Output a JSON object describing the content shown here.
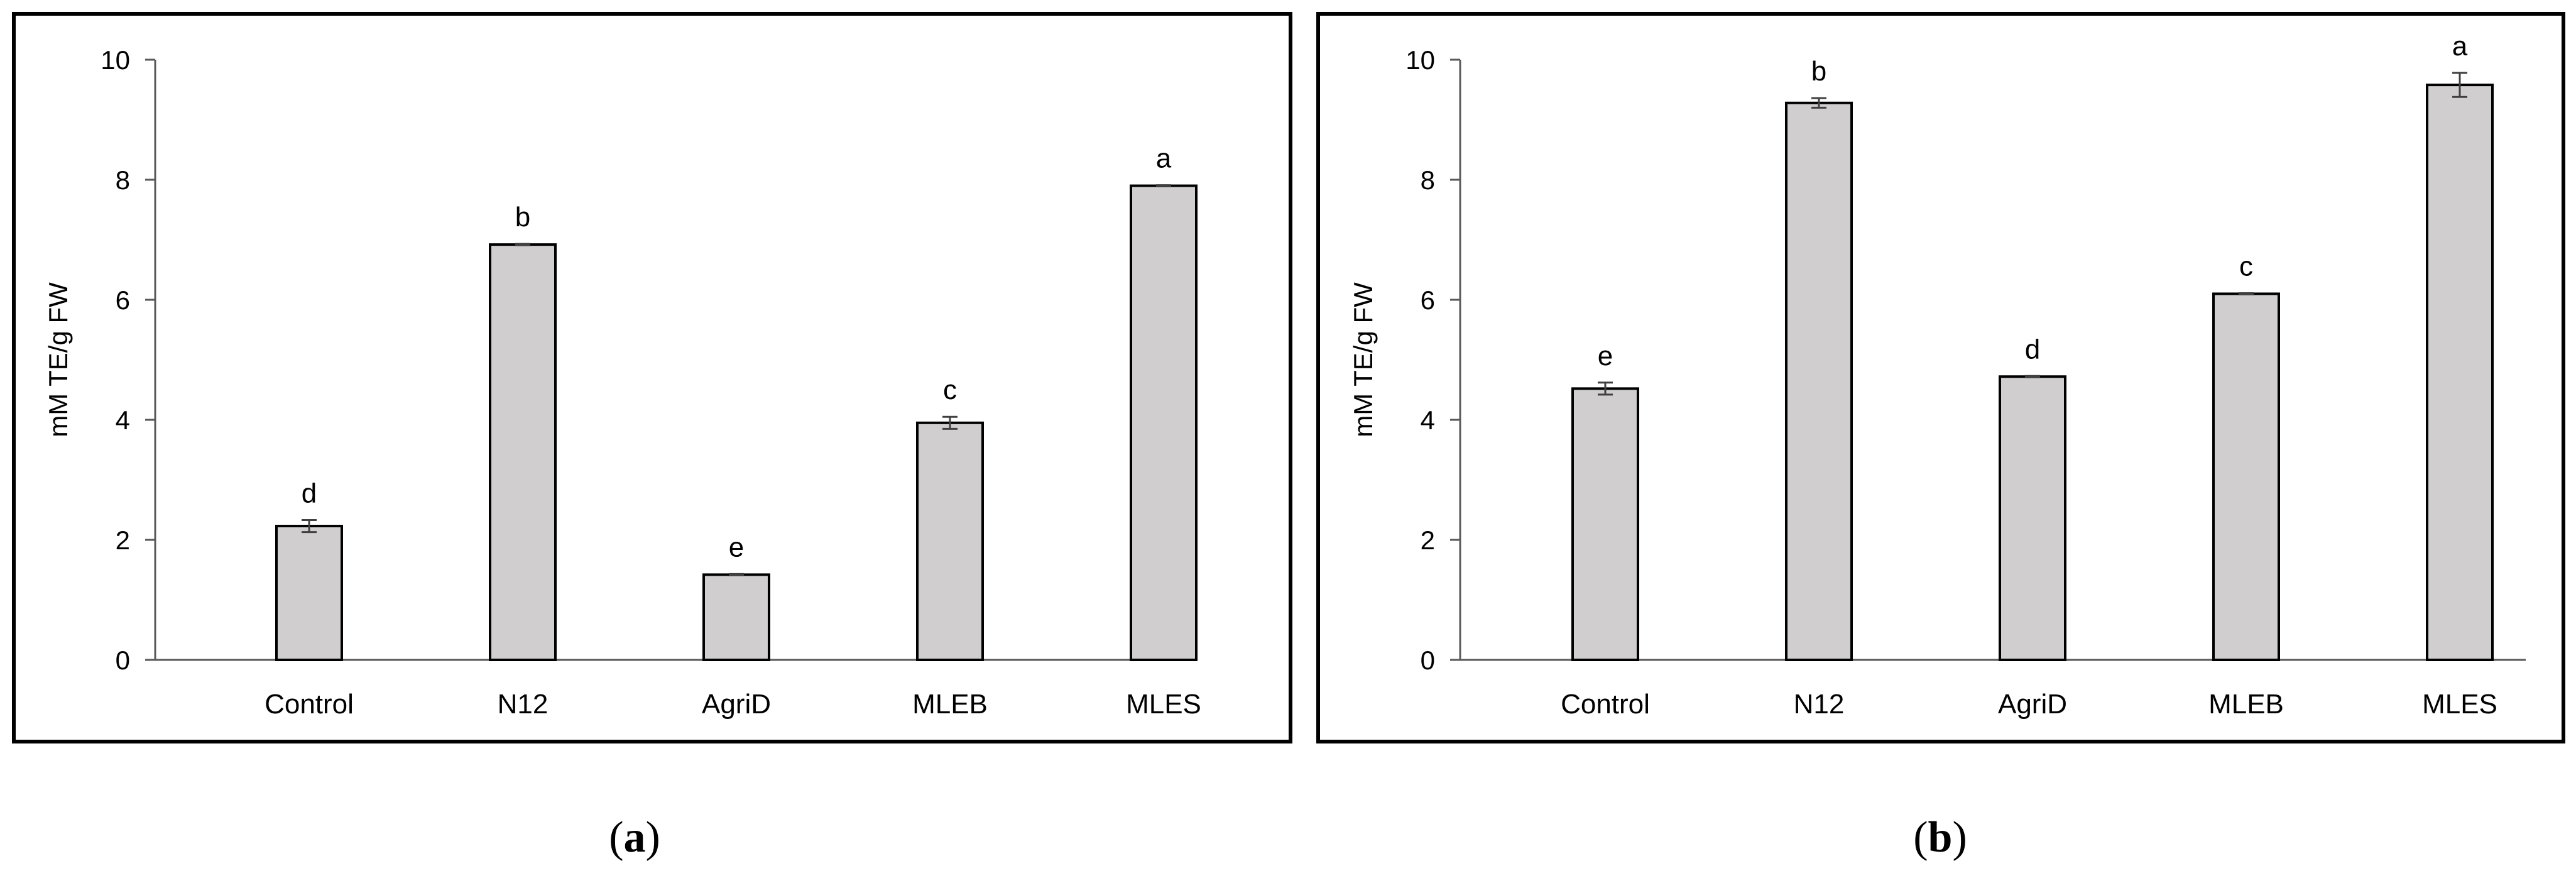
{
  "chart_data": [
    {
      "panel_label": "a",
      "type": "bar",
      "title": "",
      "xlabel": "",
      "ylabel": "mM TE/g FW",
      "ylim": [
        0,
        10
      ],
      "yticks": [
        0,
        2,
        4,
        6,
        8,
        10
      ],
      "grid": false,
      "categories": [
        "Control",
        "N12",
        "AgriD",
        "MLEB",
        "MLES"
      ],
      "values": [
        2.23,
        6.92,
        1.42,
        3.95,
        7.9
      ],
      "errors": [
        0.1,
        0.01,
        0.01,
        0.1,
        0.01
      ],
      "significance": [
        "d",
        "b",
        "e",
        "c",
        "a"
      ],
      "bar_color": "#d0cece",
      "edge_color": "#000000"
    },
    {
      "panel_label": "b",
      "type": "bar",
      "title": "",
      "xlabel": "",
      "ylabel": "mM TE/g FW",
      "ylim": [
        0,
        10
      ],
      "yticks": [
        0,
        2,
        4,
        6,
        8,
        10
      ],
      "grid": false,
      "categories": [
        "Control",
        "N12",
        "AgriD",
        "MLEB",
        "MLES"
      ],
      "values": [
        4.52,
        9.28,
        4.72,
        6.1,
        9.58
      ],
      "errors": [
        0.1,
        0.08,
        0.01,
        0.01,
        0.2
      ],
      "significance": [
        "e",
        "b",
        "d",
        "c",
        "a"
      ],
      "bar_color": "#d0cece",
      "edge_color": "#000000"
    }
  ]
}
